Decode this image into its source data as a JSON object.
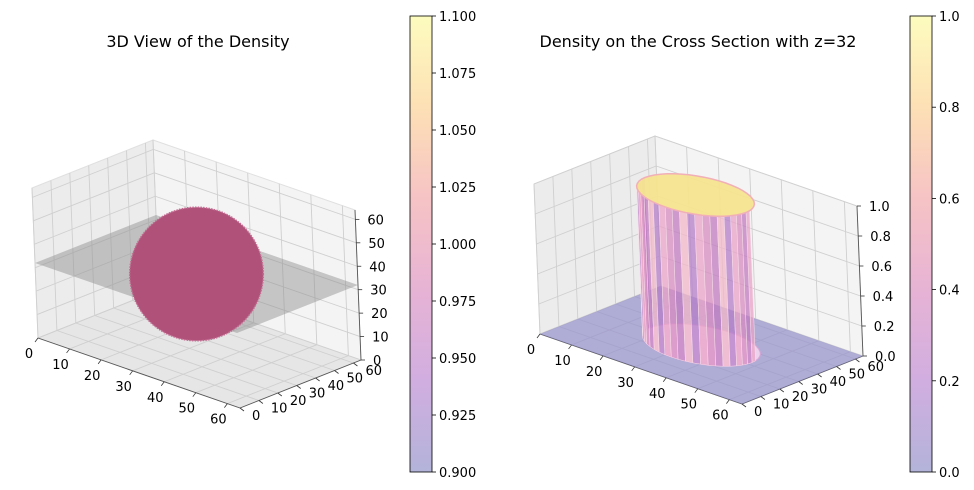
{
  "chart_data": [
    {
      "type": "3d-scatter",
      "title": "3D View of the Density",
      "x_ticks": [
        "0",
        "10",
        "20",
        "30",
        "40",
        "50",
        "60"
      ],
      "y_ticks": [
        "0",
        "10",
        "20",
        "30",
        "40",
        "50",
        "60"
      ],
      "z_ticks": [
        "0",
        "10",
        "20",
        "30",
        "40",
        "50",
        "60"
      ],
      "xlim": [
        0,
        64
      ],
      "ylim": [
        0,
        64
      ],
      "zlim": [
        0,
        64
      ],
      "plane_z": 32,
      "sphere": {
        "center": [
          32,
          32,
          32
        ],
        "radius": 16,
        "density": 1.0
      },
      "colorbar": {
        "colormap": "magma",
        "range": [
          0.9,
          1.1
        ],
        "ticks": [
          "0.900",
          "0.925",
          "0.950",
          "0.975",
          "1.000",
          "1.025",
          "1.050",
          "1.075",
          "1.100"
        ]
      }
    },
    {
      "type": "3d-bar",
      "title": "Density on the Cross Section with z=32",
      "x_ticks": [
        "0",
        "10",
        "20",
        "30",
        "40",
        "50",
        "60"
      ],
      "y_ticks": [
        "0",
        "10",
        "20",
        "30",
        "40",
        "50",
        "60"
      ],
      "z_ticks": [
        "0.0",
        "0.2",
        "0.4",
        "0.6",
        "0.8",
        "1.0"
      ],
      "xlim": [
        0,
        64
      ],
      "ylim": [
        0,
        64
      ],
      "zlim": [
        0,
        1
      ],
      "disk": {
        "center": [
          32,
          32
        ],
        "radius": 16,
        "value": 1.0
      },
      "colorbar": {
        "colormap": "magma",
        "range": [
          0.0,
          1.0
        ],
        "ticks": [
          "0.0",
          "0.2",
          "0.4",
          "0.6",
          "0.8",
          "1.0"
        ]
      }
    }
  ],
  "colors": {
    "pane": "#f2f2f2",
    "grid": "#cfcfcf",
    "sphere": "#b0517a",
    "plane_gray": "#8c8c8c",
    "floor_blue": "#8a86cc"
  }
}
